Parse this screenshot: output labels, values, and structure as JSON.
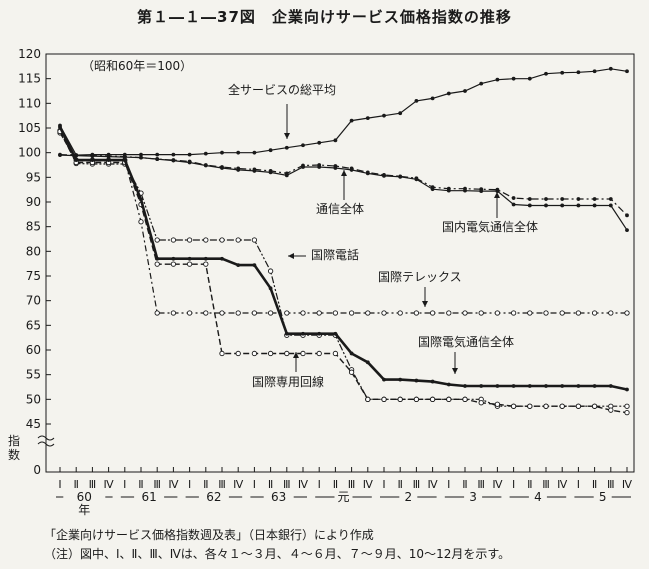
{
  "figure_title": "第１―１―37図　企業向けサービス価格指数の推移",
  "source_note": "「企業向けサービス価格指数週及表」（日本銀行）により作成",
  "remark_note": "（注）図中、Ⅰ、Ⅱ、Ⅲ、Ⅳは、各々１～３月、４～６月、７～９月、10～12月を示す。",
  "chart_data": {
    "type": "line",
    "title": "第１―１―37図　企業向けサービス価格指数の推移",
    "base_note": "（昭和60年＝100）",
    "ylabel": "指数",
    "ylim": [
      45,
      120
    ],
    "yticks": [
      45,
      50,
      55,
      60,
      65,
      70,
      75,
      80,
      85,
      90,
      95,
      100,
      105,
      110,
      115,
      120
    ],
    "ybreak_zero_label": "0",
    "quarter_labels": [
      "Ⅰ",
      "Ⅱ",
      "Ⅲ",
      "Ⅳ",
      "Ⅰ",
      "Ⅱ",
      "Ⅲ",
      "Ⅳ",
      "Ⅰ",
      "Ⅱ",
      "Ⅲ",
      "Ⅳ",
      "Ⅰ",
      "Ⅱ",
      "Ⅲ",
      "Ⅳ",
      "Ⅰ",
      "Ⅱ",
      "Ⅲ",
      "Ⅳ",
      "Ⅰ",
      "Ⅱ",
      "Ⅲ",
      "Ⅳ",
      "Ⅰ",
      "Ⅱ",
      "Ⅲ",
      "Ⅳ",
      "Ⅰ",
      "Ⅱ",
      "Ⅲ",
      "Ⅳ",
      "Ⅰ",
      "Ⅱ",
      "Ⅲ",
      "Ⅳ"
    ],
    "year_labels": [
      "60年",
      "61",
      "62",
      "63",
      "元",
      "2",
      "3",
      "4",
      "5"
    ],
    "grid": false,
    "series": [
      {
        "name": "全サービスの総平均",
        "style": "solid-dots",
        "color": "#1a1a1a",
        "values": [
          105.5,
          99.5,
          99.6,
          99.6,
          99.6,
          99.6,
          99.6,
          99.6,
          99.6,
          99.8,
          100.0,
          100.0,
          100.0,
          100.5,
          101.0,
          101.5,
          102.0,
          102.5,
          106.5,
          107.0,
          107.5,
          108.0,
          110.5,
          111.0,
          112.0,
          112.5,
          114.0,
          114.8,
          115.0,
          115.0,
          116.0,
          116.2,
          116.3,
          116.5,
          117.0,
          116.5
        ]
      },
      {
        "name": "通信全体",
        "style": "dashdot-dots",
        "color": "#1a1a1a",
        "values": [
          99.6,
          99.5,
          99.4,
          99.3,
          99.2,
          99.0,
          98.7,
          98.5,
          98.2,
          97.5,
          97.1,
          96.8,
          96.6,
          96.3,
          95.8,
          97.4,
          97.5,
          97.3,
          96.8,
          96.0,
          95.5,
          95.2,
          94.8,
          93.0,
          92.7,
          92.7,
          92.6,
          92.5,
          90.8,
          90.6,
          90.6,
          90.6,
          90.6,
          90.6,
          90.6,
          87.3
        ]
      },
      {
        "name": "国内電気通信全体",
        "style": "solid-dots",
        "color": "#1a1a1a",
        "values": [
          99.5,
          99.4,
          99.3,
          99.2,
          99.1,
          99.0,
          98.7,
          98.4,
          98.0,
          97.4,
          96.9,
          96.5,
          96.3,
          96.0,
          95.4,
          97.1,
          97.1,
          96.9,
          96.5,
          95.8,
          95.3,
          95.1,
          94.6,
          92.6,
          92.3,
          92.3,
          92.2,
          92.2,
          89.5,
          89.3,
          89.3,
          89.3,
          89.3,
          89.3,
          89.3,
          84.3
        ]
      },
      {
        "name": "国際電話",
        "style": "dashdotdot-circles",
        "color": "#1a1a1a",
        "values": [
          104.5,
          97.8,
          97.7,
          97.7,
          97.7,
          91.8,
          82.3,
          82.3,
          82.3,
          82.3,
          82.3,
          82.3,
          82.3,
          76.0,
          63.0,
          63.0,
          63.0,
          63.0,
          56.0,
          50.0,
          50.0,
          50.0,
          50.0,
          50.0,
          50.0,
          50.0,
          50.0,
          48.6,
          48.6,
          48.6,
          48.6,
          48.6,
          48.6,
          48.6,
          48.6,
          48.6
        ]
      },
      {
        "name": "国際テレックス",
        "style": "dashdot-circles",
        "color": "#1a1a1a",
        "values": [
          104.0,
          98.5,
          98.5,
          98.5,
          98.5,
          86.0,
          67.5,
          67.5,
          67.5,
          67.5,
          67.5,
          67.5,
          67.5,
          67.5,
          67.5,
          67.5,
          67.5,
          67.5,
          67.5,
          67.5,
          67.5,
          67.5,
          67.5,
          67.5,
          67.5,
          67.5,
          67.5,
          67.5,
          67.5,
          67.5,
          67.5,
          67.5,
          67.5,
          67.5,
          67.5,
          67.5
        ]
      },
      {
        "name": "国際専用回線",
        "style": "dashed-circles",
        "color": "#1a1a1a",
        "values": [
          104.3,
          98.0,
          98.0,
          98.0,
          98.0,
          89.5,
          77.4,
          77.4,
          77.4,
          77.4,
          59.3,
          59.3,
          59.3,
          59.3,
          59.3,
          59.3,
          59.3,
          59.3,
          55.5,
          50.0,
          50.0,
          50.0,
          50.0,
          50.0,
          50.0,
          50.0,
          49.3,
          49.0,
          48.6,
          48.6,
          48.6,
          48.6,
          48.6,
          48.6,
          47.8,
          47.3
        ]
      },
      {
        "name": "国際電気通信全体",
        "style": "thick-solid-dots",
        "color": "#1a1a1a",
        "values": [
          105.2,
          98.5,
          98.5,
          98.5,
          98.5,
          90.5,
          78.5,
          78.5,
          78.5,
          78.5,
          78.5,
          77.2,
          77.2,
          72.5,
          63.3,
          63.3,
          63.3,
          63.3,
          59.3,
          57.5,
          54.0,
          54.0,
          53.8,
          53.6,
          53.0,
          52.7,
          52.7,
          52.7,
          52.7,
          52.7,
          52.7,
          52.7,
          52.7,
          52.7,
          52.7,
          52.0
        ]
      }
    ],
    "annotations": [
      {
        "text": "全サービスの総平均",
        "series": "全サービスの総平均"
      },
      {
        "text": "通信全体",
        "series": "通信全体"
      },
      {
        "text": "国内電気通信全体",
        "series": "国内電気通信全体"
      },
      {
        "text": "国際電話",
        "series": "国際電話"
      },
      {
        "text": "国際テレックス",
        "series": "国際テレックス"
      },
      {
        "text": "国際電気通信全体",
        "series": "国際電気通信全体"
      },
      {
        "text": "国際専用回線",
        "series": "国際専用回線"
      }
    ]
  }
}
